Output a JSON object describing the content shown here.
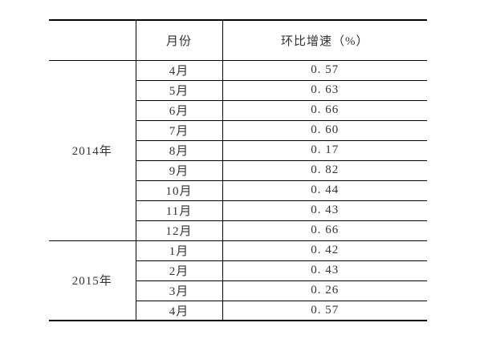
{
  "page": {
    "background": "#ffffff"
  },
  "table": {
    "columns": {
      "year": "",
      "month": "月份",
      "growth": "环比增速（%）"
    },
    "sections": [
      {
        "year": "2014年",
        "rows": [
          {
            "month": "4月",
            "growth": "0. 57"
          },
          {
            "month": "5月",
            "growth": "0. 63"
          },
          {
            "month": "6月",
            "growth": "0. 66"
          },
          {
            "month": "7月",
            "growth": "0. 60"
          },
          {
            "month": "8月",
            "growth": "0. 17"
          },
          {
            "month": "9月",
            "growth": "0. 82"
          },
          {
            "month": "10月",
            "growth": "0. 44"
          },
          {
            "month": "11月",
            "growth": "0. 43"
          },
          {
            "month": "12月",
            "growth": "0. 66"
          }
        ]
      },
      {
        "year": "2015年",
        "rows": [
          {
            "month": "1月",
            "growth": "0. 42"
          },
          {
            "month": "2月",
            "growth": "0. 43"
          },
          {
            "month": "3月",
            "growth": "0. 26"
          },
          {
            "month": "4月",
            "growth": "0. 57"
          }
        ]
      }
    ],
    "colors": {
      "border": "#000000",
      "text": "#333333",
      "background": "#ffffff"
    }
  }
}
